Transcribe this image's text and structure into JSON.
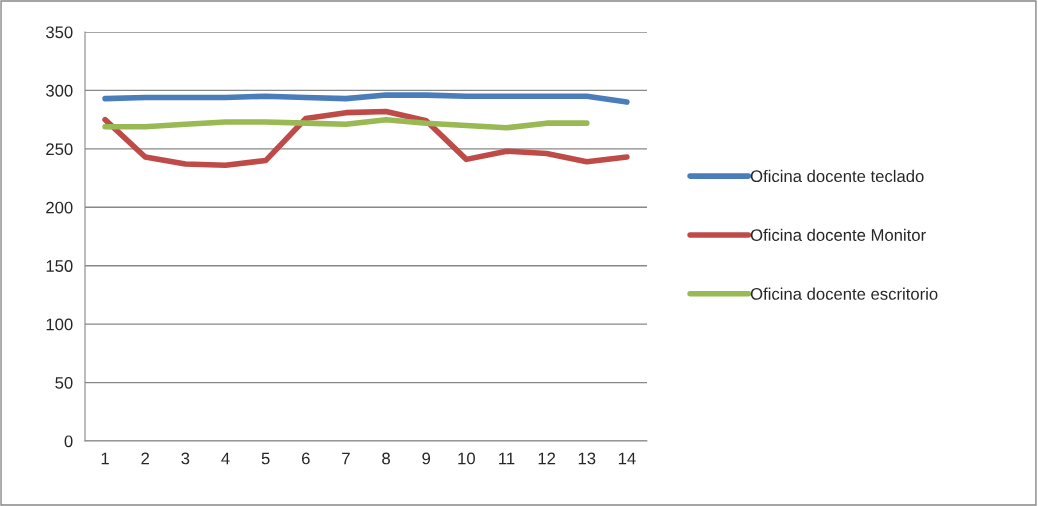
{
  "chart_data": {
    "type": "line",
    "categories": [
      "1",
      "2",
      "3",
      "4",
      "5",
      "6",
      "7",
      "8",
      "9",
      "10",
      "11",
      "12",
      "13",
      "14"
    ],
    "series": [
      {
        "name": "Oficina docente teclado",
        "color": "#4a7ebb",
        "values": [
          293,
          294,
          294,
          294,
          295,
          294,
          293,
          296,
          296,
          295,
          295,
          295,
          295,
          290
        ]
      },
      {
        "name": "Oficina docente Monitor",
        "color": "#be4b48",
        "values": [
          275,
          243,
          237,
          236,
          240,
          276,
          281,
          282,
          274,
          241,
          248,
          246,
          239,
          243
        ]
      },
      {
        "name": "Oficina docente escritorio",
        "color": "#98b954",
        "values": [
          269,
          269,
          271,
          273,
          273,
          272,
          271,
          275,
          272,
          270,
          268,
          272,
          272,
          null
        ]
      }
    ],
    "ylim": [
      0,
      350
    ],
    "yticks": [
      0,
      50,
      100,
      150,
      200,
      250,
      300,
      350
    ],
    "grid": "y",
    "legend": "right",
    "marker": "none",
    "line_style": "solid"
  }
}
